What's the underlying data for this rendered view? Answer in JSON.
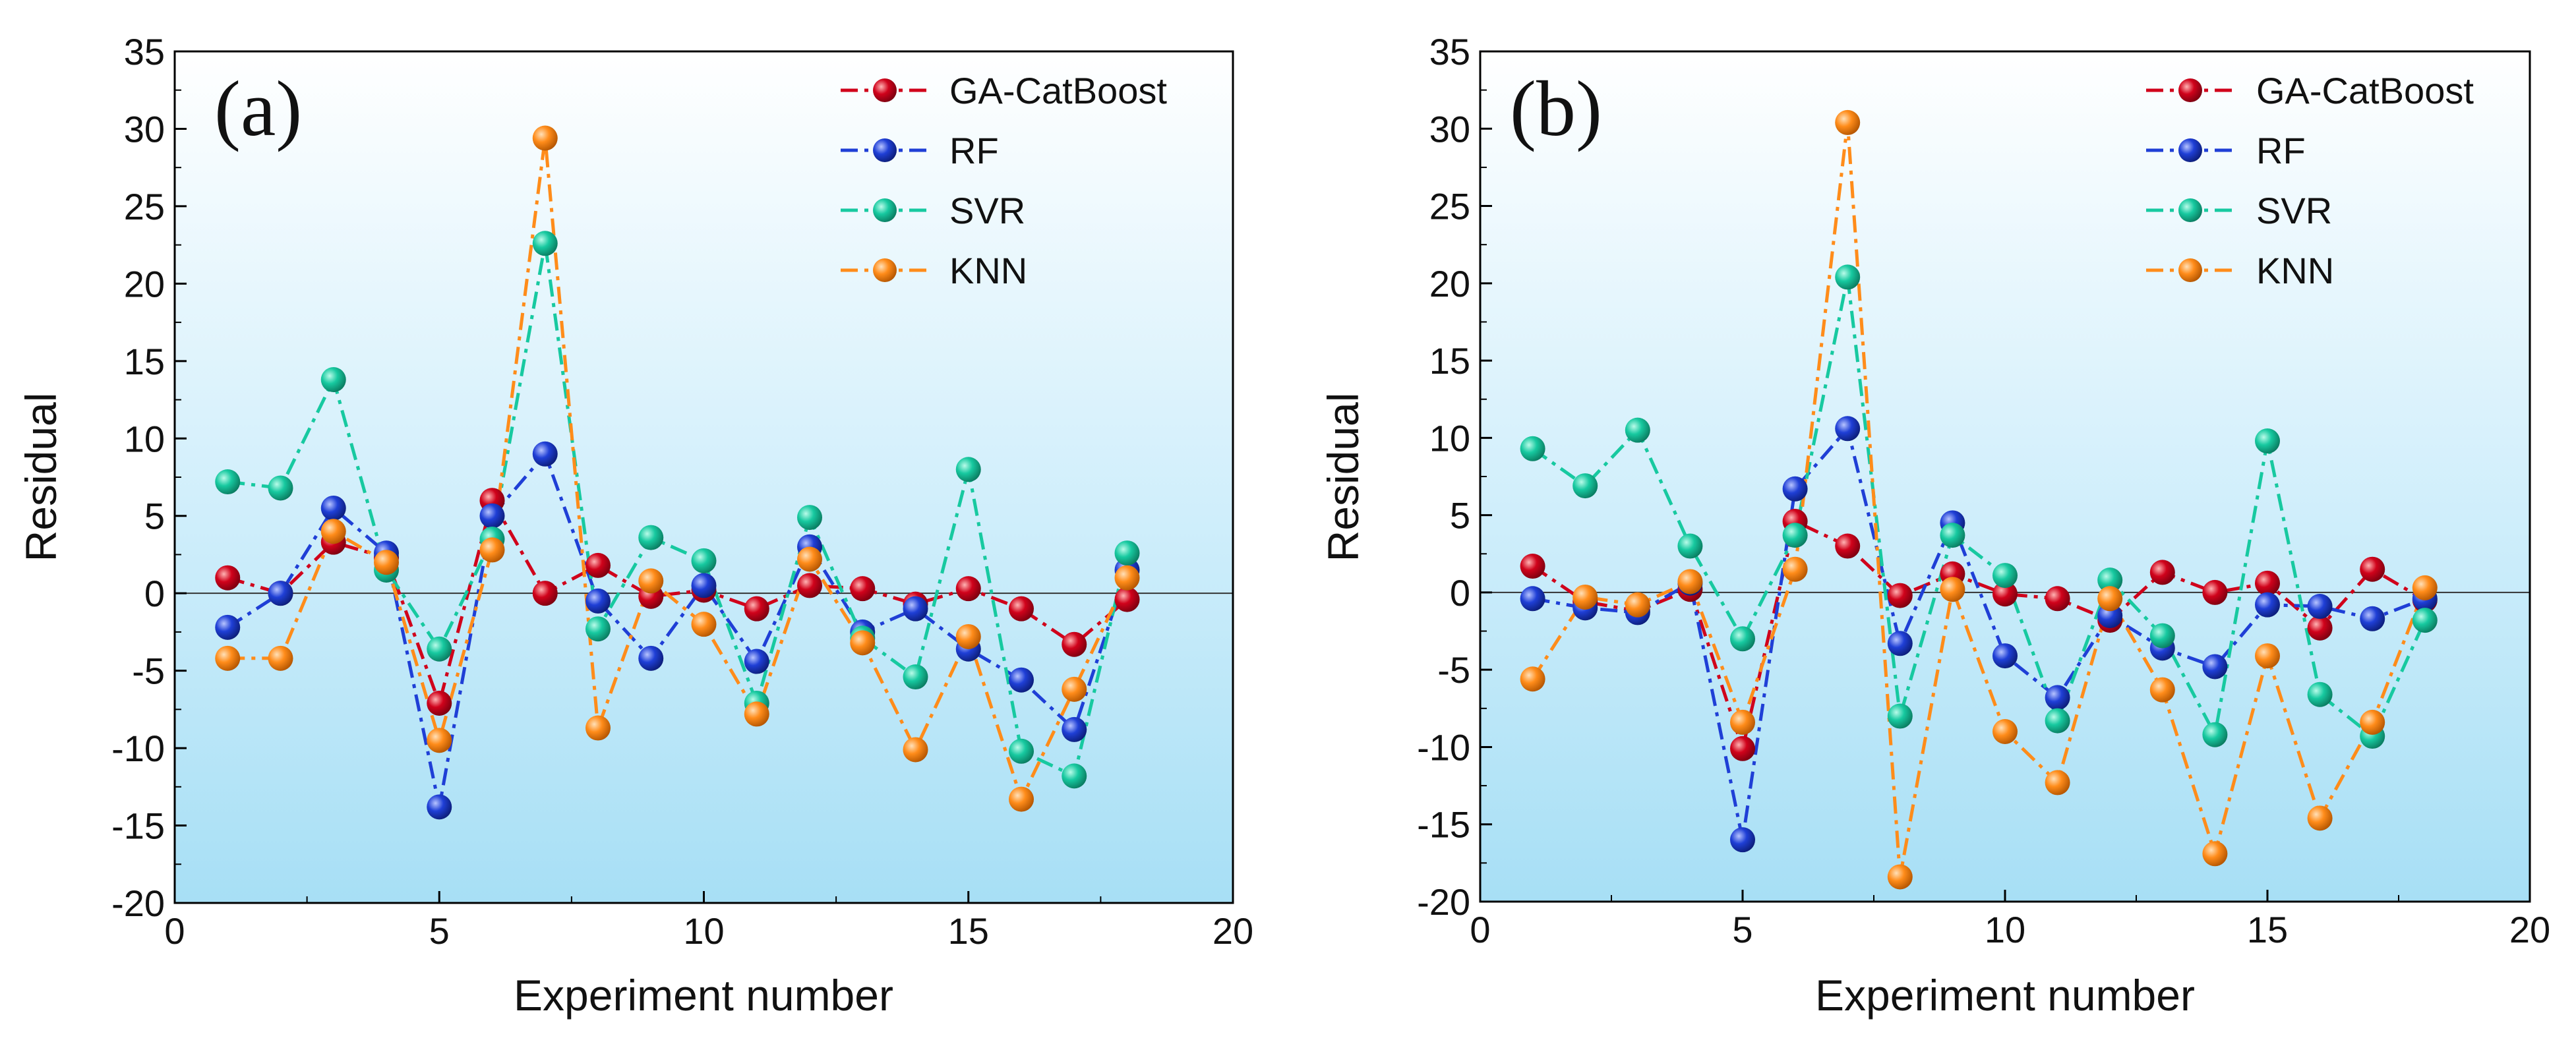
{
  "chart_data": [
    {
      "type": "line",
      "panel_label": "(a)",
      "xlabel": "Experiment number",
      "ylabel": "Residual",
      "xlim": [
        0,
        20
      ],
      "ylim": [
        -20,
        35
      ],
      "xticks": [
        0,
        5,
        10,
        15,
        20
      ],
      "yticks": [
        -20,
        -15,
        -10,
        -5,
        0,
        5,
        10,
        15,
        20,
        25,
        30,
        35
      ],
      "zero_line": true,
      "legend_position": "top-right",
      "x": [
        1,
        2,
        3,
        4,
        5,
        6,
        7,
        8,
        9,
        10,
        11,
        12,
        13,
        14,
        15,
        16,
        17,
        18
      ],
      "series": [
        {
          "name": "GA-CatBoost",
          "color": "#d0021b",
          "values": [
            1.0,
            0.0,
            3.3,
            2.3,
            -7.1,
            6.0,
            0.0,
            1.8,
            -0.2,
            0.2,
            -1.0,
            0.5,
            0.3,
            -0.7,
            0.3,
            -1.0,
            -3.3,
            -0.4
          ]
        },
        {
          "name": "RF",
          "color": "#1f3fd6",
          "values": [
            -2.2,
            0.0,
            5.5,
            2.6,
            -13.8,
            5.0,
            9.0,
            -0.5,
            -4.2,
            0.5,
            -4.4,
            3.0,
            -2.5,
            -1.0,
            -3.6,
            -5.6,
            -8.8,
            1.5
          ]
        },
        {
          "name": "SVR",
          "color": "#17c9a0",
          "values": [
            7.2,
            6.8,
            13.8,
            1.5,
            -3.6,
            3.5,
            22.6,
            -2.3,
            3.6,
            2.1,
            -7.1,
            4.9,
            -2.9,
            -5.4,
            8.0,
            -10.2,
            -11.8,
            2.6
          ]
        },
        {
          "name": "KNN",
          "color": "#ff8c1a",
          "values": [
            -4.2,
            -4.2,
            4.0,
            2.0,
            -9.5,
            2.8,
            29.4,
            -8.7,
            0.8,
            -2.0,
            -7.8,
            2.2,
            -3.2,
            -10.1,
            -2.8,
            -13.3,
            -6.2,
            1.0
          ]
        }
      ]
    },
    {
      "type": "line",
      "panel_label": "(b)",
      "xlabel": "Experiment number",
      "ylabel": "Residual",
      "xlim": [
        0,
        20
      ],
      "ylim": [
        -20,
        35
      ],
      "xticks": [
        0,
        5,
        10,
        15,
        20
      ],
      "yticks": [
        -20,
        -15,
        -10,
        -5,
        0,
        5,
        10,
        15,
        20,
        25,
        30,
        35
      ],
      "zero_line": true,
      "legend_position": "top-right",
      "x": [
        1,
        2,
        3,
        4,
        5,
        6,
        7,
        8,
        9,
        10,
        11,
        12,
        13,
        14,
        15,
        16,
        17,
        18
      ],
      "series": [
        {
          "name": "GA-CatBoost",
          "color": "#d0021b",
          "values": [
            1.7,
            -0.6,
            -1.2,
            0.2,
            -10.1,
            4.6,
            3.0,
            -0.2,
            1.2,
            -0.1,
            -0.4,
            -1.8,
            1.3,
            0.0,
            0.6,
            -2.3,
            1.5,
            -0.5
          ]
        },
        {
          "name": "RF",
          "color": "#1f3fd6",
          "values": [
            -0.4,
            -1.0,
            -1.3,
            0.6,
            -16.0,
            6.7,
            10.6,
            -3.3,
            4.5,
            -4.1,
            -6.8,
            -1.5,
            -3.6,
            -4.8,
            -0.8,
            -0.9,
            -1.7,
            -0.4
          ]
        },
        {
          "name": "SVR",
          "color": "#17c9a0",
          "values": [
            9.3,
            6.9,
            10.5,
            3.0,
            -3.0,
            3.7,
            20.4,
            -8.0,
            3.7,
            1.1,
            -8.3,
            0.8,
            -2.8,
            -9.2,
            9.8,
            -6.6,
            -9.3,
            -1.8
          ]
        },
        {
          "name": "KNN",
          "color": "#ff8c1a",
          "values": [
            -5.6,
            -0.3,
            -0.8,
            0.7,
            -8.4,
            1.5,
            30.4,
            -18.4,
            0.2,
            -9.0,
            -12.3,
            -0.4,
            -6.3,
            -16.9,
            -4.1,
            -14.6,
            -8.4,
            0.3
          ]
        }
      ]
    }
  ]
}
